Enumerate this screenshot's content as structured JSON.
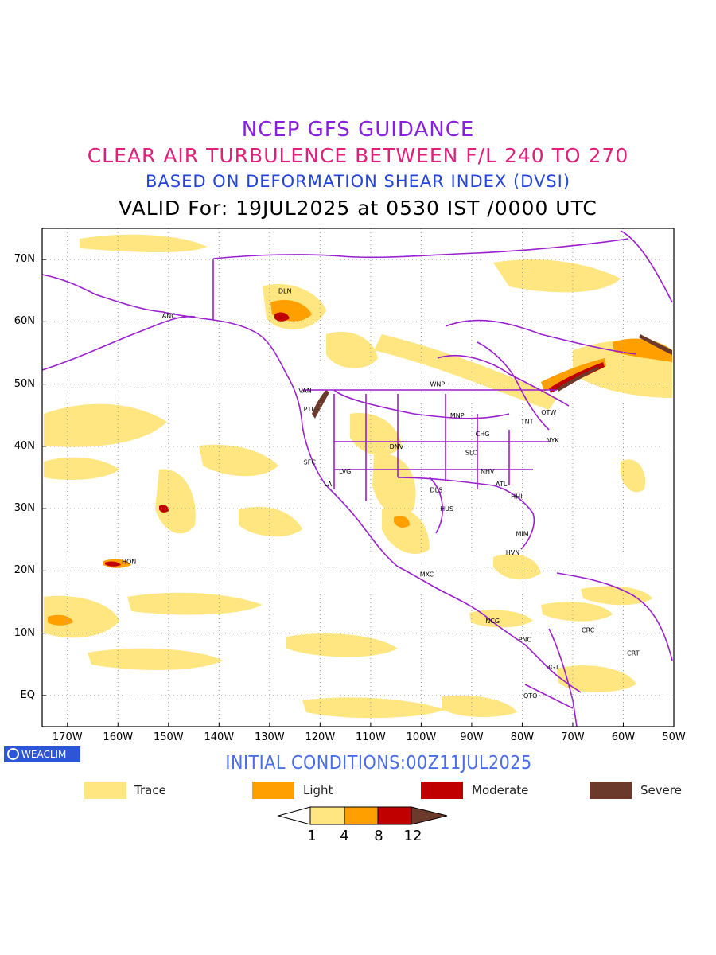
{
  "titles": {
    "line1": "NCEP GFS GUIDANCE",
    "line2": "CLEAR AIR TURBULENCE BETWEEN F/L 240 TO 270",
    "line3": "BASED ON DEFORMATION SHEAR INDEX (DVSI)",
    "line4": "VALID For: 19JUL2025 at 0530 IST /0000 UTC"
  },
  "colors": {
    "title1": "#8a1fe0",
    "title2": "#e0207a",
    "title3": "#2244dd",
    "coastline": "#9a1fcf",
    "trace": "#ffe680",
    "light": "#ffa000",
    "moderate": "#c00000",
    "severe": "#6b3a2a",
    "initial_conditions": "#4a6de8"
  },
  "axes": {
    "lat_labels": [
      "70N",
      "60N",
      "50N",
      "40N",
      "30N",
      "20N",
      "10N",
      "EQ"
    ],
    "lon_labels": [
      "170W",
      "160W",
      "150W",
      "140W",
      "130W",
      "120W",
      "110W",
      "100W",
      "90W",
      "80W",
      "70W",
      "60W",
      "50W"
    ],
    "lon_range": [
      -175,
      -50
    ],
    "lat_range": [
      -5,
      75
    ],
    "grid": "dotted"
  },
  "cities": [
    {
      "name": "ANC",
      "lon": -150,
      "lat": 61
    },
    {
      "name": "DLN",
      "lon": -127,
      "lat": 65
    },
    {
      "name": "VAN",
      "lon": -123,
      "lat": 49
    },
    {
      "name": "PTL",
      "lon": -122,
      "lat": 46
    },
    {
      "name": "SFC",
      "lon": -122,
      "lat": 37.5
    },
    {
      "name": "LA",
      "lon": -118,
      "lat": 34
    },
    {
      "name": "LVG",
      "lon": -115,
      "lat": 36
    },
    {
      "name": "DNV",
      "lon": -105,
      "lat": 40
    },
    {
      "name": "WNP",
      "lon": -97,
      "lat": 50
    },
    {
      "name": "MNP",
      "lon": -93,
      "lat": 45
    },
    {
      "name": "CHG",
      "lon": -88,
      "lat": 42
    },
    {
      "name": "SLO",
      "lon": -90,
      "lat": 39
    },
    {
      "name": "NHV",
      "lon": -87,
      "lat": 36
    },
    {
      "name": "DLS",
      "lon": -97,
      "lat": 33
    },
    {
      "name": "ATL",
      "lon": -84,
      "lat": 34
    },
    {
      "name": "HHI",
      "lon": -81,
      "lat": 32
    },
    {
      "name": "HUS",
      "lon": -95,
      "lat": 30
    },
    {
      "name": "TNT",
      "lon": -79,
      "lat": 44
    },
    {
      "name": "OTW",
      "lon": -75,
      "lat": 45.5
    },
    {
      "name": "NYK",
      "lon": -74,
      "lat": 41
    },
    {
      "name": "MIM",
      "lon": -80,
      "lat": 26
    },
    {
      "name": "HVN",
      "lon": -82,
      "lat": 23
    },
    {
      "name": "MXC",
      "lon": -99,
      "lat": 19.5
    },
    {
      "name": "HON",
      "lon": -158,
      "lat": 21.5
    },
    {
      "name": "NCG",
      "lon": -86,
      "lat": 12
    },
    {
      "name": "PNC",
      "lon": -79.5,
      "lat": 9
    },
    {
      "name": "CRC",
      "lon": -67,
      "lat": 10.5
    },
    {
      "name": "BGT",
      "lon": -74,
      "lat": 4.6
    },
    {
      "name": "QTO",
      "lon": -78.5,
      "lat": 0
    },
    {
      "name": "CRT",
      "lon": -58,
      "lat": 6.8
    }
  ],
  "branding": "WEACLIM",
  "initial_conditions": "INITIAL CONDITIONS:00Z11JUL2025",
  "legend": [
    {
      "label": "Trace",
      "color": "#ffe680"
    },
    {
      "label": "Light",
      "color": "#ffa000"
    },
    {
      "label": "Moderate",
      "color": "#c00000"
    },
    {
      "label": "Severe",
      "color": "#6b3a2a"
    }
  ],
  "colorbar": {
    "ticks": [
      "1",
      "4",
      "8",
      "12"
    ],
    "colors": [
      "#ffe680",
      "#ffa000",
      "#c00000",
      "#6b3a2a"
    ]
  }
}
